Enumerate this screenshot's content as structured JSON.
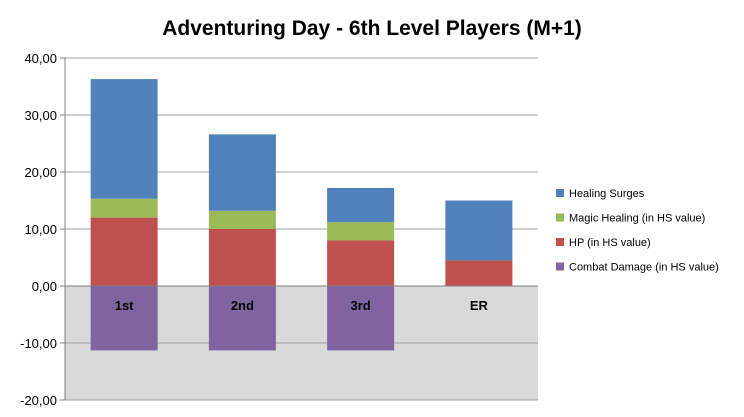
{
  "chart_data": {
    "type": "bar",
    "stacked": true,
    "title": "Adventuring Day - 6th Level Players (M+1)",
    "xlabel": "",
    "ylabel": "",
    "ylim": [
      -20,
      40
    ],
    "yticks": [
      40,
      30,
      20,
      10,
      0,
      -10,
      -20
    ],
    "ytick_labels": [
      "40,00",
      "30,00",
      "20,00",
      "10,00",
      "0,00",
      "-10,00",
      "-20,00"
    ],
    "categories": [
      "1st",
      "2nd",
      "3rd",
      "ER"
    ],
    "negative_region_color": "#d9d9d9",
    "grid": true,
    "legend_position": "right",
    "series": [
      {
        "name": "Healing Surges",
        "color": "#4f81bd",
        "values": [
          21.0,
          13.4,
          6.0,
          10.5
        ]
      },
      {
        "name": "Magic Healing (in HS value)",
        "color": "#9bbb59",
        "values": [
          3.3,
          3.2,
          3.2,
          0.0
        ]
      },
      {
        "name": "HP (in HS value)",
        "color": "#c0504d",
        "values": [
          12.0,
          10.0,
          8.0,
          4.5
        ]
      },
      {
        "name": "Combat Damage (in HS value)",
        "color": "#8064a2",
        "values": [
          -11.3,
          -11.3,
          -11.3,
          0.0
        ]
      }
    ],
    "legend_order": [
      "Healing Surges",
      "Magic Healing (in HS value)",
      "HP (in HS value)",
      "Combat Damage (in HS value)"
    ]
  }
}
